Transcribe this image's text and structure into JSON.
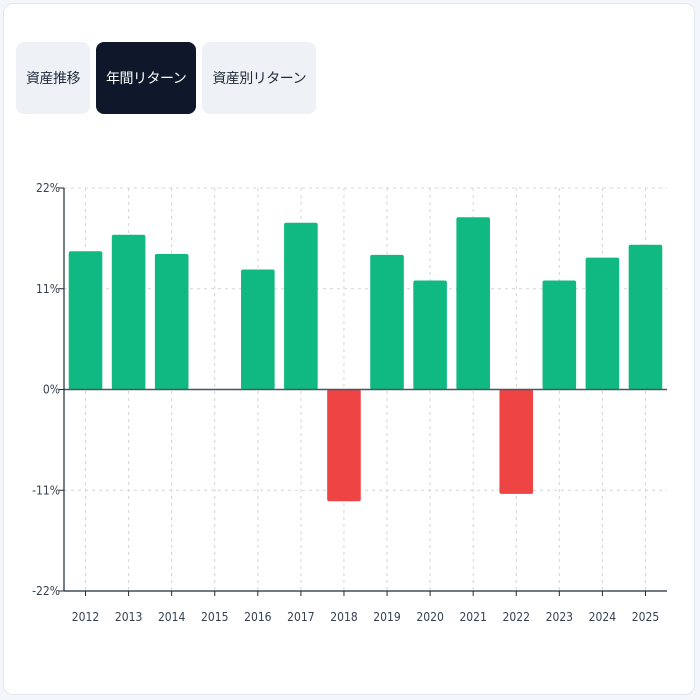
{
  "tabs": [
    {
      "label": "資産推移",
      "active": false
    },
    {
      "label": "年間リターン",
      "active": true
    },
    {
      "label": "資産別リターン",
      "active": false
    }
  ],
  "colors": {
    "positive": "#10b981",
    "negative": "#ef4444",
    "axis": "#1f2937",
    "zero_line": "#475569",
    "grid": "#d1d5db"
  },
  "chart_data": {
    "type": "bar",
    "categories": [
      "2012",
      "2013",
      "2014",
      "2015",
      "2016",
      "2017",
      "2018",
      "2019",
      "2020",
      "2021",
      "2022",
      "2023",
      "2024",
      "2025"
    ],
    "values": [
      15.1,
      16.9,
      14.8,
      0,
      13.1,
      18.2,
      -12.2,
      14.7,
      11.9,
      18.8,
      -11.4,
      11.9,
      14.4,
      15.8
    ],
    "ylim": [
      -22,
      22
    ],
    "yticks": [
      22,
      11,
      0,
      -11,
      -22
    ],
    "ytick_labels": [
      "22%",
      "11%",
      "0%",
      "-11%",
      "-22%"
    ],
    "grid": true,
    "title": "",
    "xlabel": "",
    "ylabel": ""
  }
}
